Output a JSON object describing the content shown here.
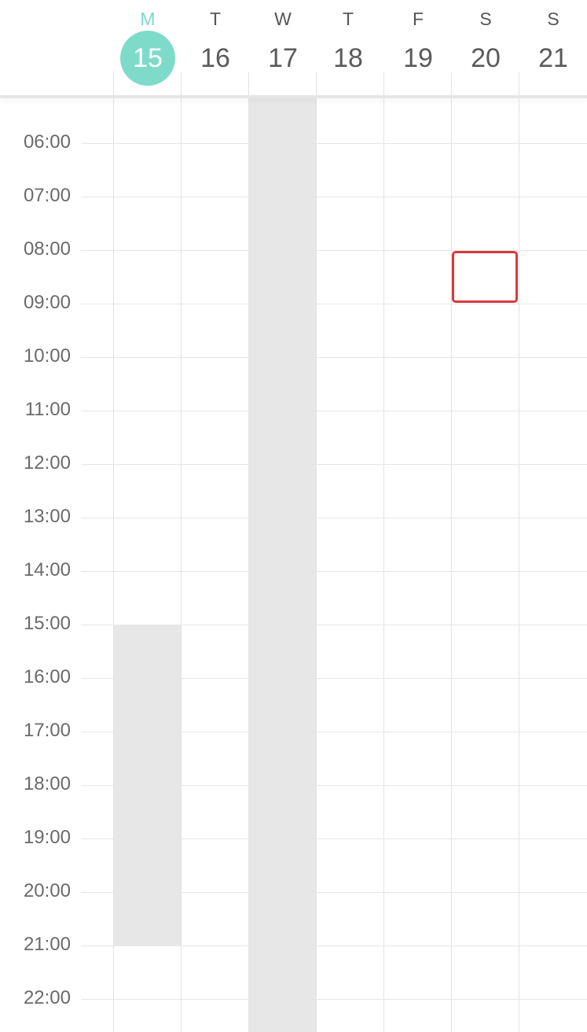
{
  "week": {
    "days": [
      {
        "letter": "M",
        "number": "15",
        "today": true
      },
      {
        "letter": "T",
        "number": "16",
        "today": false
      },
      {
        "letter": "W",
        "number": "17",
        "today": false
      },
      {
        "letter": "T",
        "number": "18",
        "today": false
      },
      {
        "letter": "F",
        "number": "19",
        "today": false
      },
      {
        "letter": "S",
        "number": "20",
        "today": false
      },
      {
        "letter": "S",
        "number": "21",
        "today": false
      }
    ]
  },
  "timeline": {
    "hours": [
      "06:00",
      "07:00",
      "08:00",
      "09:00",
      "10:00",
      "11:00",
      "12:00",
      "13:00",
      "14:00",
      "15:00",
      "16:00",
      "17:00",
      "18:00",
      "19:00",
      "20:00",
      "21:00",
      "22:00"
    ]
  },
  "colors": {
    "today_accent": "#7fdbc9",
    "busy_fill": "#e7e7e7",
    "selection_border": "#d9393b"
  },
  "busy_periods": [
    {
      "day": "M 15",
      "start": "15:00",
      "end": "21:00"
    },
    {
      "day": "W 17",
      "start": "all-day",
      "end": "all-day"
    }
  ],
  "selected_slot": {
    "day": "S 20",
    "start": "08:00",
    "end": "09:00"
  }
}
